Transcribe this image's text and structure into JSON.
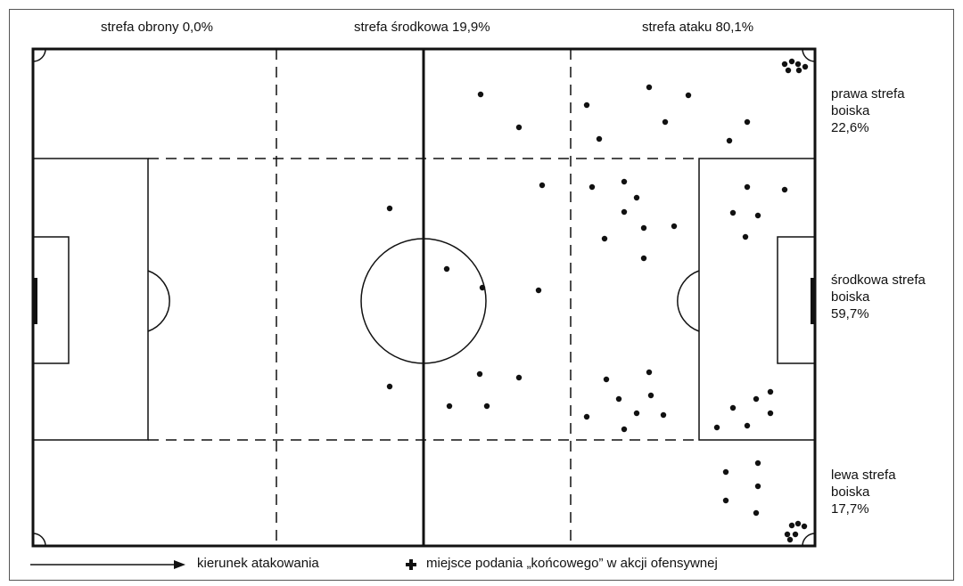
{
  "zones_top": {
    "defense": "strefa obrony 0,0%",
    "middle": "strefa środkowa 19,9%",
    "attack": "strefa ataku 80,1%"
  },
  "zones_side": {
    "right": [
      "prawa strefa",
      "boiska",
      "22,6%"
    ],
    "center": [
      "środkowa strefa",
      "boiska",
      "59,7%"
    ],
    "left": [
      "lewa strefa",
      "boiska",
      "17,7%"
    ]
  },
  "legend": {
    "direction": "kierunek atakowania",
    "marker": "miejsce podania „końcowego” w akcji ofensywnej"
  },
  "colors": {
    "line": "#111111",
    "background": "#ffffff"
  }
}
